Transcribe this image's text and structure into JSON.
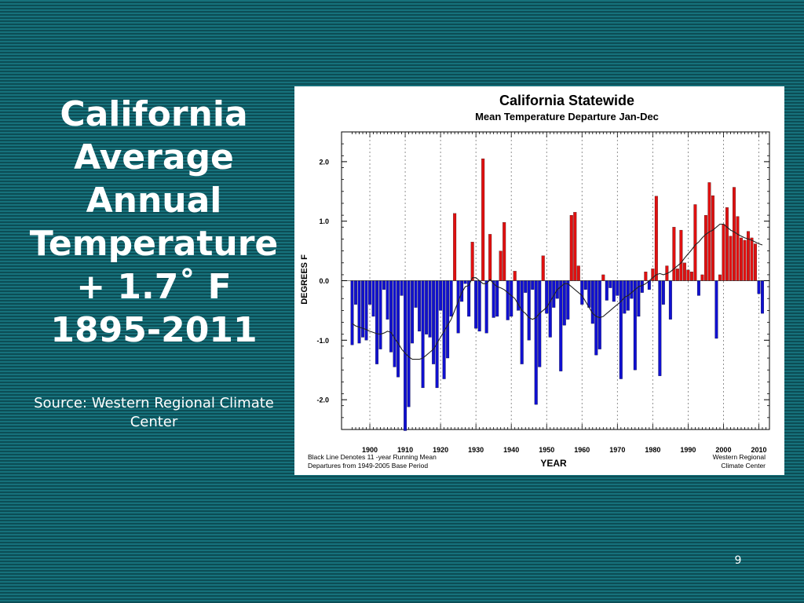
{
  "slide": {
    "title_lines": [
      "California",
      "Average",
      "Annual",
      "Temperature",
      "+ 1.7˚ F",
      "1895-2011"
    ],
    "source": "Source: Western Regional Climate Center",
    "page_number": "9"
  },
  "colors": {
    "background": "#0f5b64",
    "positive_bar": "#e01010",
    "negative_bar": "#1010d0",
    "running_mean": "#222222"
  },
  "chart_data": {
    "type": "bar",
    "title": "California Statewide",
    "subtitle": "Mean Temperature Departure Jan-Dec",
    "xlabel": "YEAR",
    "ylabel": "DEGREES F",
    "xlim": [
      1892,
      2013
    ],
    "ylim": [
      -2.5,
      2.5
    ],
    "xticks": [
      1900,
      1910,
      1920,
      1930,
      1940,
      1950,
      1960,
      1970,
      1980,
      1990,
      2000,
      2010
    ],
    "yticks": [
      2.0,
      1.0,
      0.0,
      -1.0,
      -2.0
    ],
    "ytick_labels": [
      "2.0",
      "1.0",
      "0.0",
      "-1.0",
      "-2.0"
    ],
    "grid": "vertical dotted at decades",
    "note_left_1": "Black Line Denotes 11 -year Running Mean",
    "note_left_2": "Departures from 1949-2005 Base Period",
    "note_right_1": "Western Regional",
    "note_right_2": "Climate Center",
    "years": [
      1895,
      1896,
      1897,
      1898,
      1899,
      1900,
      1901,
      1902,
      1903,
      1904,
      1905,
      1906,
      1907,
      1908,
      1909,
      1910,
      1911,
      1912,
      1913,
      1914,
      1915,
      1916,
      1917,
      1918,
      1919,
      1920,
      1921,
      1922,
      1923,
      1924,
      1925,
      1926,
      1927,
      1928,
      1929,
      1930,
      1931,
      1932,
      1933,
      1934,
      1935,
      1936,
      1937,
      1938,
      1939,
      1940,
      1941,
      1942,
      1943,
      1944,
      1945,
      1946,
      1947,
      1948,
      1949,
      1950,
      1951,
      1952,
      1953,
      1954,
      1955,
      1956,
      1957,
      1958,
      1959,
      1960,
      1961,
      1962,
      1963,
      1964,
      1965,
      1966,
      1967,
      1968,
      1969,
      1970,
      1971,
      1972,
      1973,
      1974,
      1975,
      1976,
      1977,
      1978,
      1979,
      1980,
      1981,
      1982,
      1983,
      1984,
      1985,
      1986,
      1987,
      1988,
      1989,
      1990,
      1991,
      1992,
      1993,
      1994,
      1995,
      1996,
      1997,
      1998,
      1999,
      2000,
      2001,
      2002,
      2003,
      2004,
      2005,
      2006,
      2007,
      2008,
      2009,
      2010,
      2011
    ],
    "values": [
      -1.08,
      -0.4,
      -1.05,
      -0.95,
      -1.0,
      -0.4,
      -0.6,
      -1.4,
      -1.15,
      -0.15,
      -0.65,
      -1.2,
      -1.45,
      -1.62,
      -0.25,
      -2.52,
      -2.12,
      -1.05,
      -0.45,
      -0.85,
      -1.8,
      -0.9,
      -0.95,
      -1.4,
      -1.8,
      -0.5,
      -1.65,
      -1.3,
      -0.6,
      1.13,
      -0.88,
      -0.35,
      -0.05,
      -0.6,
      0.65,
      -0.8,
      -0.85,
      2.05,
      -0.88,
      0.78,
      -0.62,
      -0.6,
      0.5,
      0.98,
      -0.66,
      -0.6,
      0.16,
      -0.5,
      -1.4,
      -0.2,
      -1.0,
      -0.15,
      -2.08,
      -1.45,
      0.42,
      -0.55,
      -0.95,
      -0.45,
      -0.3,
      -1.52,
      -0.75,
      -0.65,
      1.1,
      1.15,
      0.25,
      -0.4,
      -0.15,
      -0.45,
      -0.72,
      -1.25,
      -1.15,
      0.1,
      -0.33,
      -0.12,
      -0.35,
      -0.25,
      -1.65,
      -0.55,
      -0.5,
      -0.3,
      -1.5,
      -0.6,
      -0.2,
      0.15,
      -0.15,
      0.2,
      1.42,
      -1.6,
      -0.4,
      0.25,
      -0.65,
      0.9,
      0.2,
      0.85,
      0.3,
      0.18,
      0.15,
      1.28,
      -0.25,
      0.1,
      1.1,
      1.65,
      1.43,
      -0.97,
      0.1,
      0.95,
      1.23,
      0.75,
      1.57,
      1.08,
      0.72,
      0.68,
      0.83,
      0.72,
      0.62,
      -0.22,
      -0.55
    ],
    "running_mean": [
      -0.72,
      -0.76,
      -0.78,
      -0.8,
      -0.82,
      -0.85,
      -0.87,
      -0.89,
      -0.9,
      -0.88,
      -0.85,
      -0.87,
      -0.97,
      -1.05,
      -1.15,
      -1.22,
      -1.28,
      -1.32,
      -1.32,
      -1.32,
      -1.3,
      -1.25,
      -1.2,
      -1.15,
      -1.05,
      -0.95,
      -0.85,
      -0.75,
      -0.65,
      -0.5,
      -0.35,
      -0.2,
      -0.1,
      -0.08,
      0.05,
      0.05,
      0.0,
      -0.05,
      -0.05,
      0.02,
      -0.05,
      -0.1,
      -0.12,
      -0.15,
      -0.2,
      -0.25,
      -0.3,
      -0.4,
      -0.5,
      -0.55,
      -0.62,
      -0.65,
      -0.62,
      -0.55,
      -0.5,
      -0.45,
      -0.35,
      -0.25,
      -0.15,
      -0.1,
      -0.05,
      -0.05,
      -0.1,
      -0.15,
      -0.2,
      -0.25,
      -0.35,
      -0.45,
      -0.55,
      -0.6,
      -0.62,
      -0.6,
      -0.55,
      -0.5,
      -0.45,
      -0.4,
      -0.35,
      -0.28,
      -0.25,
      -0.2,
      -0.15,
      -0.1,
      -0.08,
      -0.05,
      0.0,
      0.05,
      0.1,
      0.12,
      0.1,
      0.12,
      0.15,
      0.2,
      0.25,
      0.3,
      0.38,
      0.45,
      0.52,
      0.6,
      0.65,
      0.72,
      0.78,
      0.82,
      0.85,
      0.9,
      0.95,
      0.95,
      0.9,
      0.85,
      0.82,
      0.78,
      0.75,
      0.72,
      0.7,
      0.68,
      0.65,
      0.62,
      0.6
    ]
  }
}
